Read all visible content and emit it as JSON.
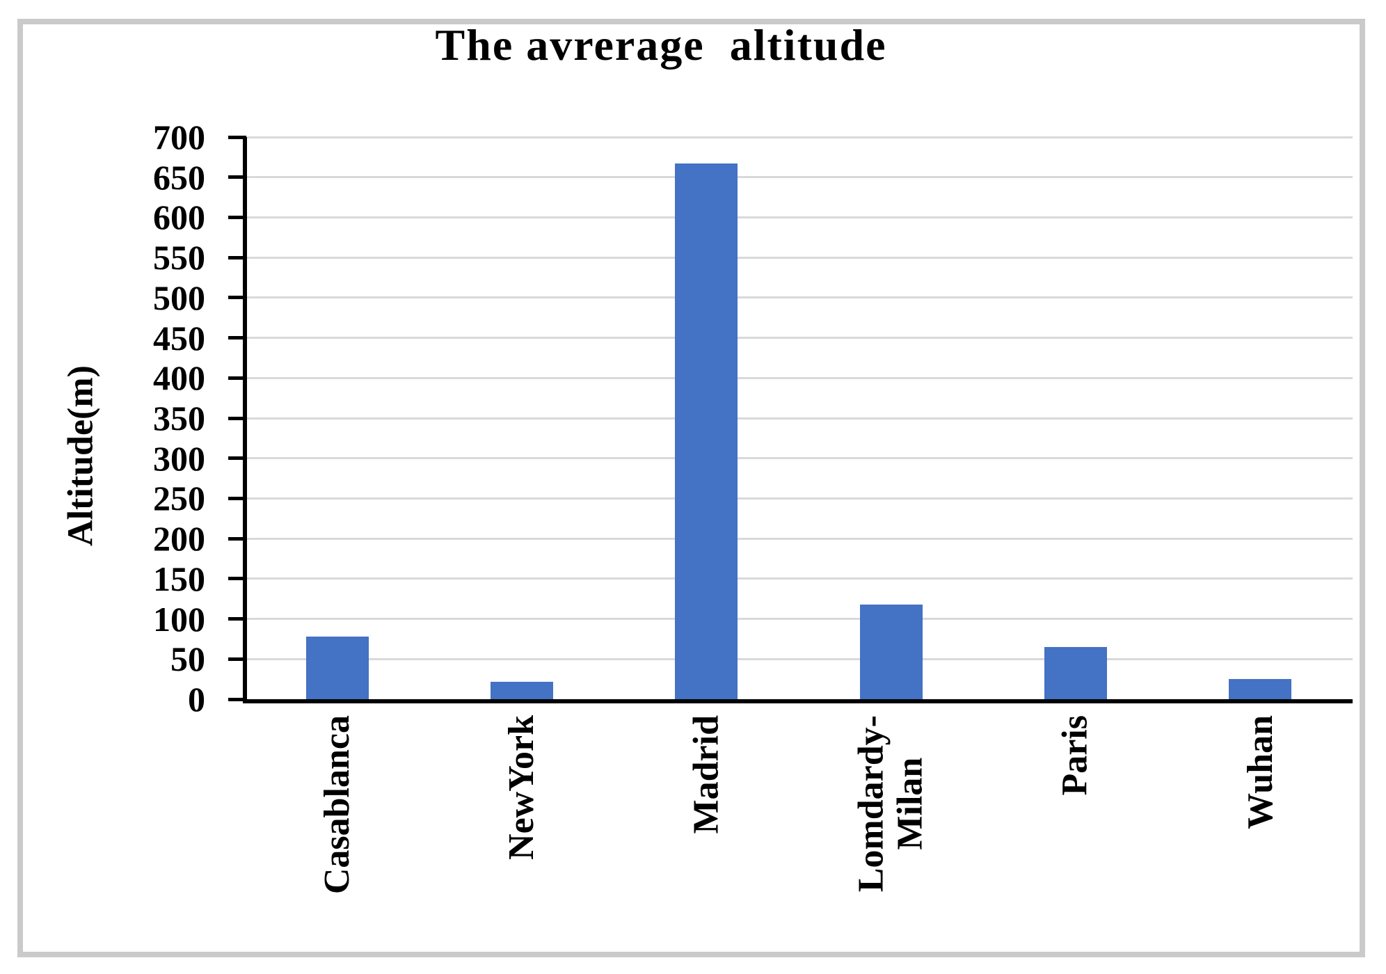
{
  "chart_data": {
    "type": "bar",
    "title": "The avrerage  altitude",
    "ylabel": "Altitude(m)",
    "xlabel": "",
    "categories": [
      "Casablanca",
      "NewYork",
      "Madrid",
      "Lomdardy-\nMilan",
      "Paris",
      "Wuhan"
    ],
    "values": [
      78,
      22,
      667,
      118,
      65,
      25
    ],
    "ylim": [
      0,
      700
    ],
    "ytick_step": 50,
    "ytick_labels": [
      "0",
      "50",
      "100",
      "150",
      "200",
      "250",
      "300",
      "350",
      "400",
      "450",
      "500",
      "550",
      "600",
      "650",
      "700"
    ],
    "grid": "horizontal-on",
    "legend": "none",
    "colors": {
      "bar": "#4472c4",
      "gridline": "#d9d9d9",
      "axis": "#000000",
      "text": "#000000",
      "frame_border": "#cacaca",
      "background": "#ffffff"
    }
  }
}
